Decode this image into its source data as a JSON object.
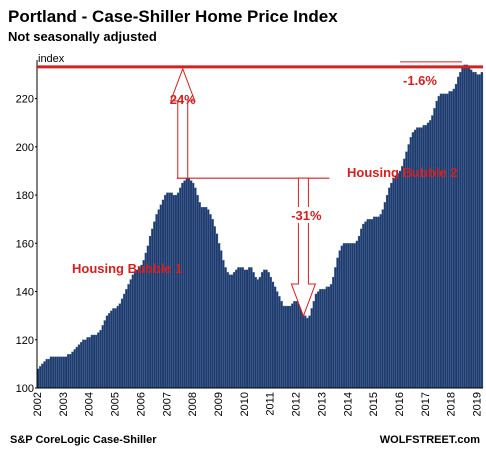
{
  "chart_data": {
    "type": "bar",
    "title": "Portland - Case-Shiller Home Price Index",
    "subtitle": "Not seasonally adjusted",
    "y_label": "index",
    "source": "S&P CoreLogic Case-Shiller",
    "credit": "WOLFSTREET.com",
    "annotations": [
      "24%",
      "-31%",
      "-1.6%",
      "Housing Bubble 1",
      "Housing Bubble 2"
    ],
    "color": "#1f3b6b",
    "ylim": [
      100,
      236
    ],
    "yticks": [
      100,
      120,
      140,
      160,
      180,
      200,
      220
    ],
    "categories": [
      "2002",
      null,
      null,
      null,
      null,
      null,
      null,
      null,
      null,
      null,
      null,
      null,
      "2003",
      null,
      null,
      null,
      null,
      null,
      null,
      null,
      null,
      null,
      null,
      null,
      "2004",
      null,
      null,
      null,
      null,
      null,
      null,
      null,
      null,
      null,
      null,
      null,
      "2005",
      null,
      null,
      null,
      null,
      null,
      null,
      null,
      null,
      null,
      null,
      null,
      "2006",
      null,
      null,
      null,
      null,
      null,
      null,
      null,
      null,
      null,
      null,
      null,
      "2007",
      null,
      null,
      null,
      null,
      null,
      null,
      null,
      null,
      null,
      null,
      null,
      "2008",
      null,
      null,
      null,
      null,
      null,
      null,
      null,
      null,
      null,
      null,
      null,
      "2009",
      null,
      null,
      null,
      null,
      null,
      null,
      null,
      null,
      null,
      null,
      null,
      "2010",
      null,
      null,
      null,
      null,
      null,
      null,
      null,
      null,
      null,
      null,
      null,
      "2011",
      null,
      null,
      null,
      null,
      null,
      null,
      null,
      null,
      null,
      null,
      null,
      "2012",
      null,
      null,
      null,
      null,
      null,
      null,
      null,
      null,
      null,
      null,
      null,
      "2013",
      null,
      null,
      null,
      null,
      null,
      null,
      null,
      null,
      null,
      null,
      null,
      "2014",
      null,
      null,
      null,
      null,
      null,
      null,
      null,
      null,
      null,
      null,
      null,
      "2015",
      null,
      null,
      null,
      null,
      null,
      null,
      null,
      null,
      null,
      null,
      null,
      "2016",
      null,
      null,
      null,
      null,
      null,
      null,
      null,
      null,
      null,
      null,
      null,
      "2017",
      null,
      null,
      null,
      null,
      null,
      null,
      null,
      null,
      null,
      null,
      null,
      "2018",
      null,
      null,
      null,
      null,
      null,
      null,
      null,
      null,
      null,
      null,
      null,
      "2019",
      null,
      null
    ],
    "values": [
      108,
      109,
      110,
      111,
      112,
      112,
      113,
      113,
      113,
      113,
      113,
      113,
      113,
      113,
      114,
      114,
      115,
      116,
      117,
      118,
      119,
      120,
      120,
      121,
      121,
      122,
      122,
      122,
      123,
      124,
      126,
      128,
      130,
      131,
      132,
      133,
      133,
      134,
      135,
      137,
      139,
      141,
      143,
      145,
      147,
      148,
      149,
      150,
      151,
      153,
      156,
      159,
      163,
      166,
      169,
      172,
      174,
      176,
      178,
      180,
      181,
      181,
      181,
      180,
      180,
      181,
      183,
      185,
      186,
      187,
      187,
      186,
      185,
      183,
      180,
      177,
      175,
      175,
      175,
      174,
      172,
      170,
      167,
      164,
      160,
      157,
      153,
      150,
      148,
      147,
      147,
      148,
      149,
      150,
      150,
      150,
      149,
      149,
      150,
      150,
      148,
      146,
      145,
      146,
      148,
      149,
      149,
      148,
      146,
      144,
      142,
      140,
      138,
      136,
      134,
      134,
      134,
      134,
      135,
      136,
      136,
      135,
      133,
      131,
      130,
      129,
      130,
      133,
      136,
      139,
      140,
      141,
      141,
      141,
      142,
      142,
      143,
      146,
      150,
      154,
      157,
      159,
      160,
      160,
      160,
      160,
      160,
      160,
      161,
      163,
      166,
      168,
      169,
      170,
      170,
      170,
      171,
      171,
      171,
      172,
      174,
      177,
      180,
      183,
      185,
      187,
      188,
      189,
      190,
      192,
      195,
      198,
      201,
      204,
      206,
      207,
      208,
      208,
      208,
      209,
      209,
      210,
      211,
      213,
      216,
      219,
      221,
      222,
      222,
      222,
      222,
      223,
      223,
      224,
      226,
      229,
      231,
      233,
      234,
      234,
      233,
      232,
      231,
      231,
      230,
      230,
      231
    ]
  }
}
